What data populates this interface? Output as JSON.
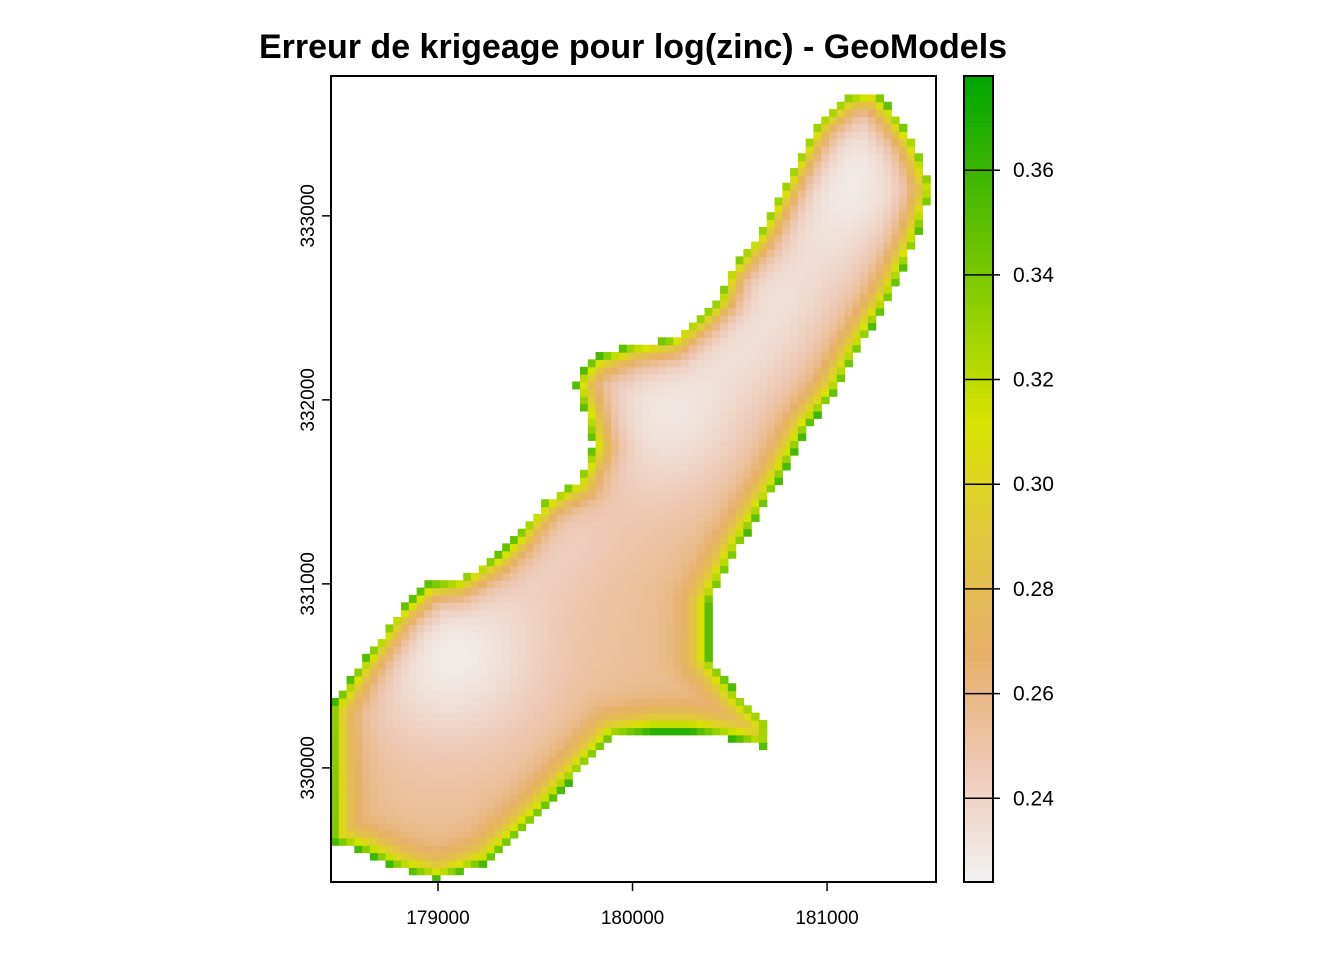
{
  "chart_data": {
    "type": "heatmap",
    "title": "Erreur de krigeage pour log(zinc) - GeoModels",
    "xlabel": "",
    "ylabel": "",
    "xlim": [
      178450,
      181560
    ],
    "ylim": [
      329380,
      333760
    ],
    "x_ticks": [
      179000,
      180000,
      181000
    ],
    "x_tick_labels": [
      "179000",
      "180000",
      "181000"
    ],
    "y_ticks": [
      330000,
      331000,
      332000,
      333000
    ],
    "y_tick_labels": [
      "330000",
      "331000",
      "332000",
      "333000"
    ],
    "colorbar": {
      "range": [
        0.224,
        0.378
      ],
      "ticks": [
        0.24,
        0.26,
        0.28,
        0.3,
        0.32,
        0.34,
        0.36
      ],
      "tick_labels": [
        "0.24",
        "0.26",
        "0.28",
        "0.30",
        "0.32",
        "0.34",
        "0.36"
      ],
      "colors": [
        "#f2f2f2",
        "#eec9b6",
        "#e7b068",
        "#e1c83e",
        "#d8e300",
        "#8fcf00",
        "#48b900",
        "#00a600"
      ]
    },
    "grid": false,
    "cell_size": 40,
    "region_boundary": [
      [
        178450,
        329600
      ],
      [
        178450,
        330330
      ],
      [
        178560,
        330500
      ],
      [
        178700,
        330700
      ],
      [
        178800,
        330850
      ],
      [
        178950,
        331000
      ],
      [
        179100,
        331020
      ],
      [
        179300,
        331150
      ],
      [
        179400,
        331250
      ],
      [
        179550,
        331450
      ],
      [
        179720,
        331560
      ],
      [
        179800,
        331750
      ],
      [
        179750,
        331950
      ],
      [
        179700,
        332100
      ],
      [
        179800,
        332230
      ],
      [
        180000,
        332300
      ],
      [
        180200,
        332330
      ],
      [
        180350,
        332450
      ],
      [
        180450,
        332550
      ],
      [
        180500,
        332700
      ],
      [
        180650,
        332900
      ],
      [
        180750,
        333100
      ],
      [
        180850,
        333300
      ],
      [
        180950,
        333500
      ],
      [
        181100,
        333650
      ],
      [
        181250,
        333680
      ],
      [
        181350,
        333550
      ],
      [
        181450,
        333400
      ],
      [
        181540,
        333150
      ],
      [
        181450,
        332850
      ],
      [
        181320,
        332550
      ],
      [
        181150,
        332250
      ],
      [
        181050,
        332050
      ],
      [
        180900,
        331850
      ],
      [
        180750,
        331550
      ],
      [
        180550,
        331200
      ],
      [
        180400,
        330900
      ],
      [
        180400,
        330600
      ],
      [
        180550,
        330400
      ],
      [
        180700,
        330250
      ],
      [
        180700,
        330100
      ],
      [
        180550,
        330150
      ],
      [
        180300,
        330200
      ],
      [
        180100,
        330200
      ],
      [
        179900,
        330170
      ],
      [
        179700,
        329950
      ],
      [
        179500,
        329720
      ],
      [
        179250,
        329480
      ],
      [
        179000,
        329390
      ],
      [
        178800,
        329450
      ],
      [
        178600,
        329550
      ]
    ],
    "value_centers": [
      {
        "x": 179050,
        "y": 330620,
        "value": 0.227,
        "radius": 360
      },
      {
        "x": 181070,
        "y": 333230,
        "value": 0.227,
        "radius": 400
      },
      {
        "x": 179500,
        "y": 331350,
        "value": 0.238,
        "radius": 280
      },
      {
        "x": 180150,
        "y": 331900,
        "value": 0.232,
        "radius": 320
      },
      {
        "x": 180550,
        "y": 332500,
        "value": 0.233,
        "radius": 320
      }
    ],
    "base_value": 0.255,
    "edge_value_max": 0.378
  }
}
